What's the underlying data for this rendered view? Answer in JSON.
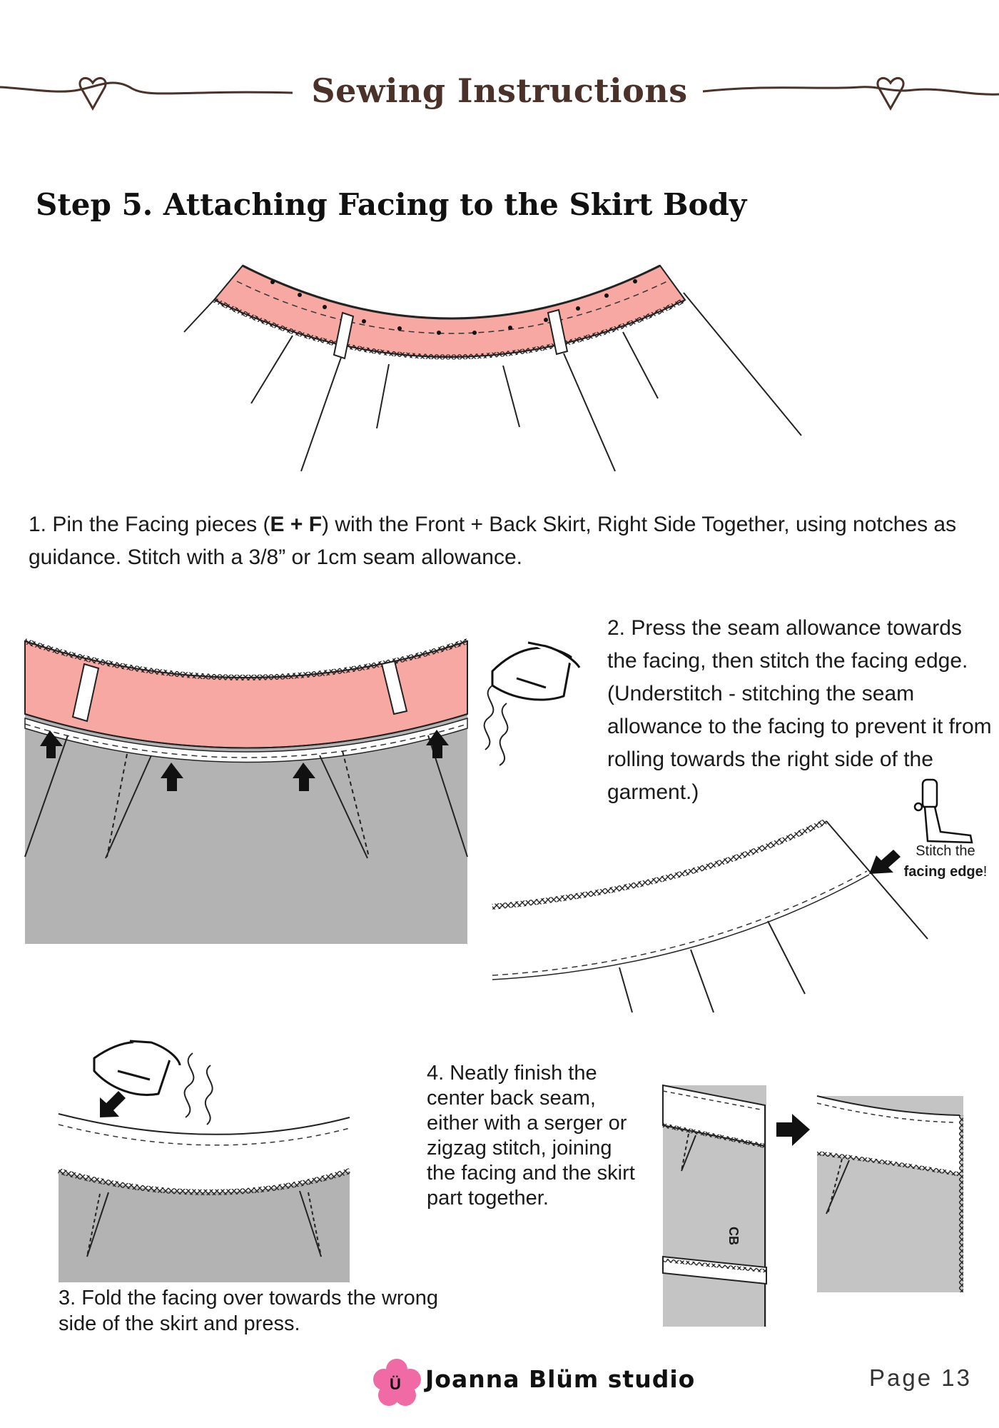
{
  "header": {
    "title": "Sewing Instructions"
  },
  "step": {
    "title": "Step 5. Attaching Facing to the Skirt Body"
  },
  "instructions": {
    "s1_prefix": "1.  Pin the Facing pieces (",
    "s1_bold": "E + F",
    "s1_suffix": ") with the Front + Back Skirt, Right Side Together, using notches as guidance. Stitch with a 3/8” or 1cm seam allowance.",
    "s2": "2. Press the seam allowance towards the facing, then stitch the facing edge. (Understitch - stitching the seam allowance to the facing to prevent it from rolling towards the right side of the garment.)",
    "s3": "3. Fold the facing over towards the wrong side of the skirt and press.",
    "s4": "4. Neatly finish the center back seam, either with a serger or zigzag stitch, joining the facing and the skirt part together."
  },
  "note": {
    "line1": "Stitch the",
    "bold": "facing edge",
    "end": "!"
  },
  "labels": {
    "cb": "CB"
  },
  "footer": {
    "logo_letter": "Ü",
    "brand": "Joanna Blüm studio",
    "page": "Page 13"
  },
  "icons": [
    "heart-icon",
    "iron-icon",
    "steam-icon",
    "arrow-up-icon",
    "arrow-right-icon",
    "presser-foot-icon",
    "flower-logo-icon"
  ],
  "colors": {
    "header_brown": "#4a3129",
    "facing_pink": "#f7a8a3",
    "skirt_gray": "#b3b3b3",
    "logo_pink": "#f06aa6"
  }
}
